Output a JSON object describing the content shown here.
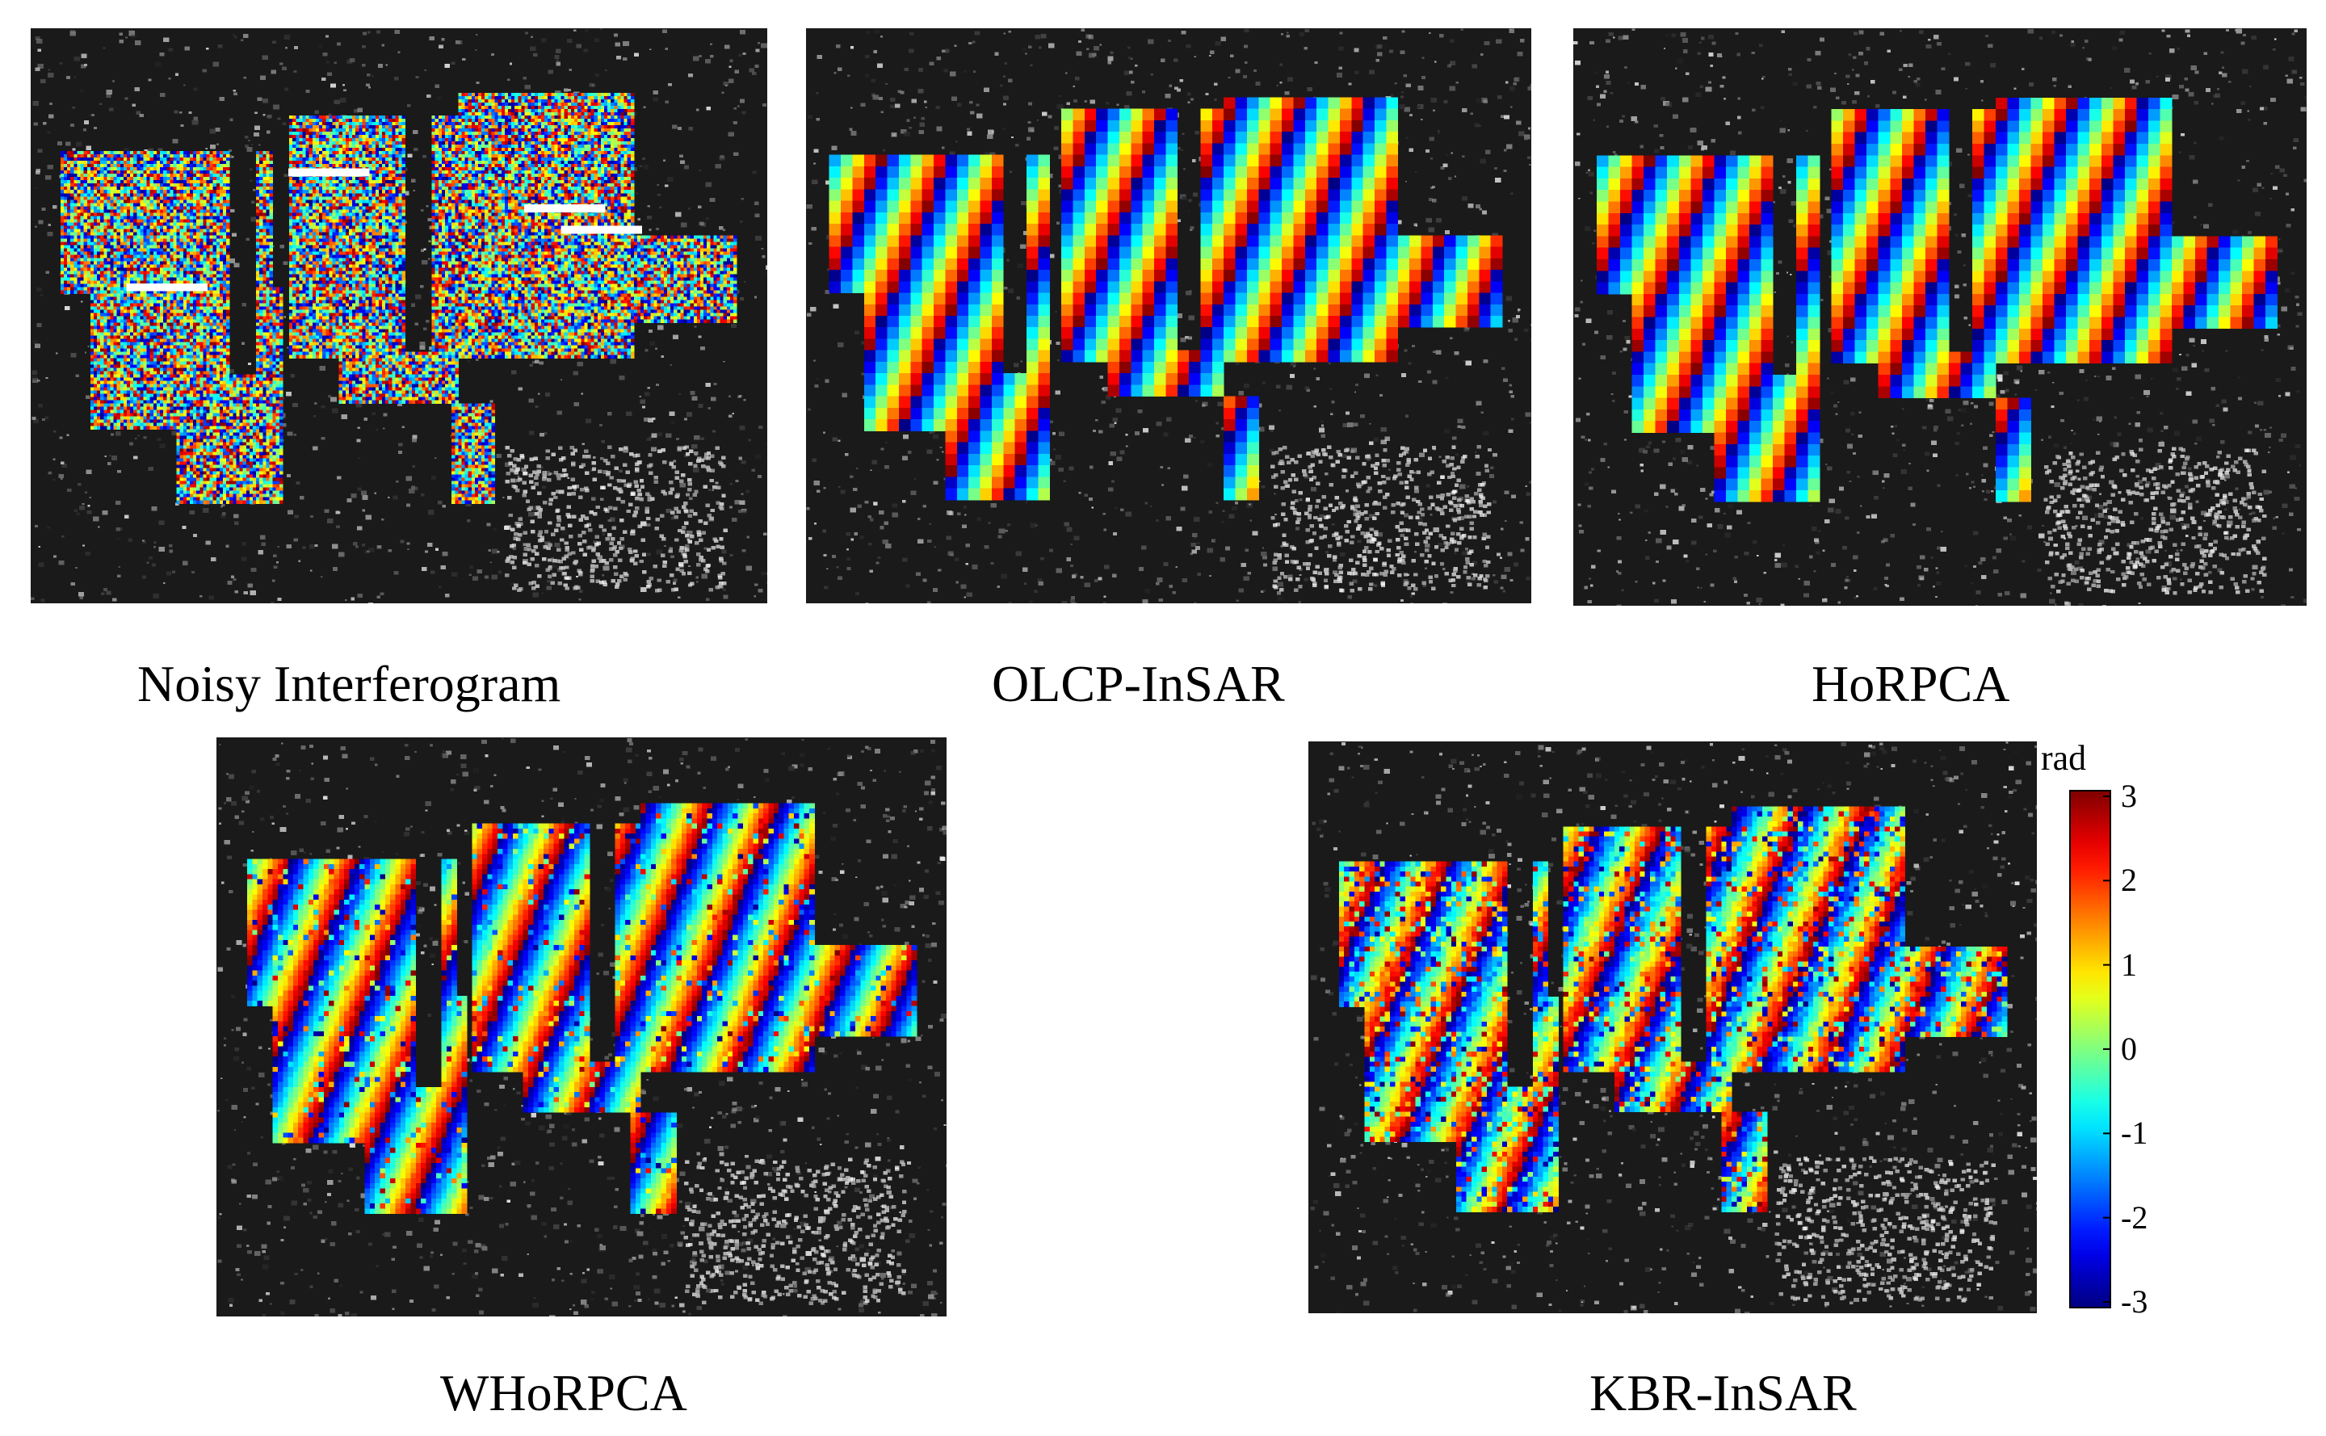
{
  "figure": {
    "panels": [
      {
        "id": "noisy",
        "caption": "Noisy Interferogram",
        "noise": 0.95,
        "highlight_lines": true
      },
      {
        "id": "olcp",
        "caption": "OLCP-InSAR",
        "noise": 0.0,
        "blocky": true
      },
      {
        "id": "horpca",
        "caption": "HoRPCA",
        "noise": 0.0,
        "blocky": true
      },
      {
        "id": "whorpca",
        "caption": "WHoRPCA",
        "noise": 0.12
      },
      {
        "id": "kbr",
        "caption": "KBR-InSAR",
        "noise": 0.25
      }
    ],
    "colorbar": {
      "title": "rad",
      "min": -3,
      "max": 3,
      "ticks": [
        "3",
        "2",
        "1",
        "0",
        "-1",
        "-2",
        "-3"
      ],
      "colormap": "jet"
    }
  }
}
